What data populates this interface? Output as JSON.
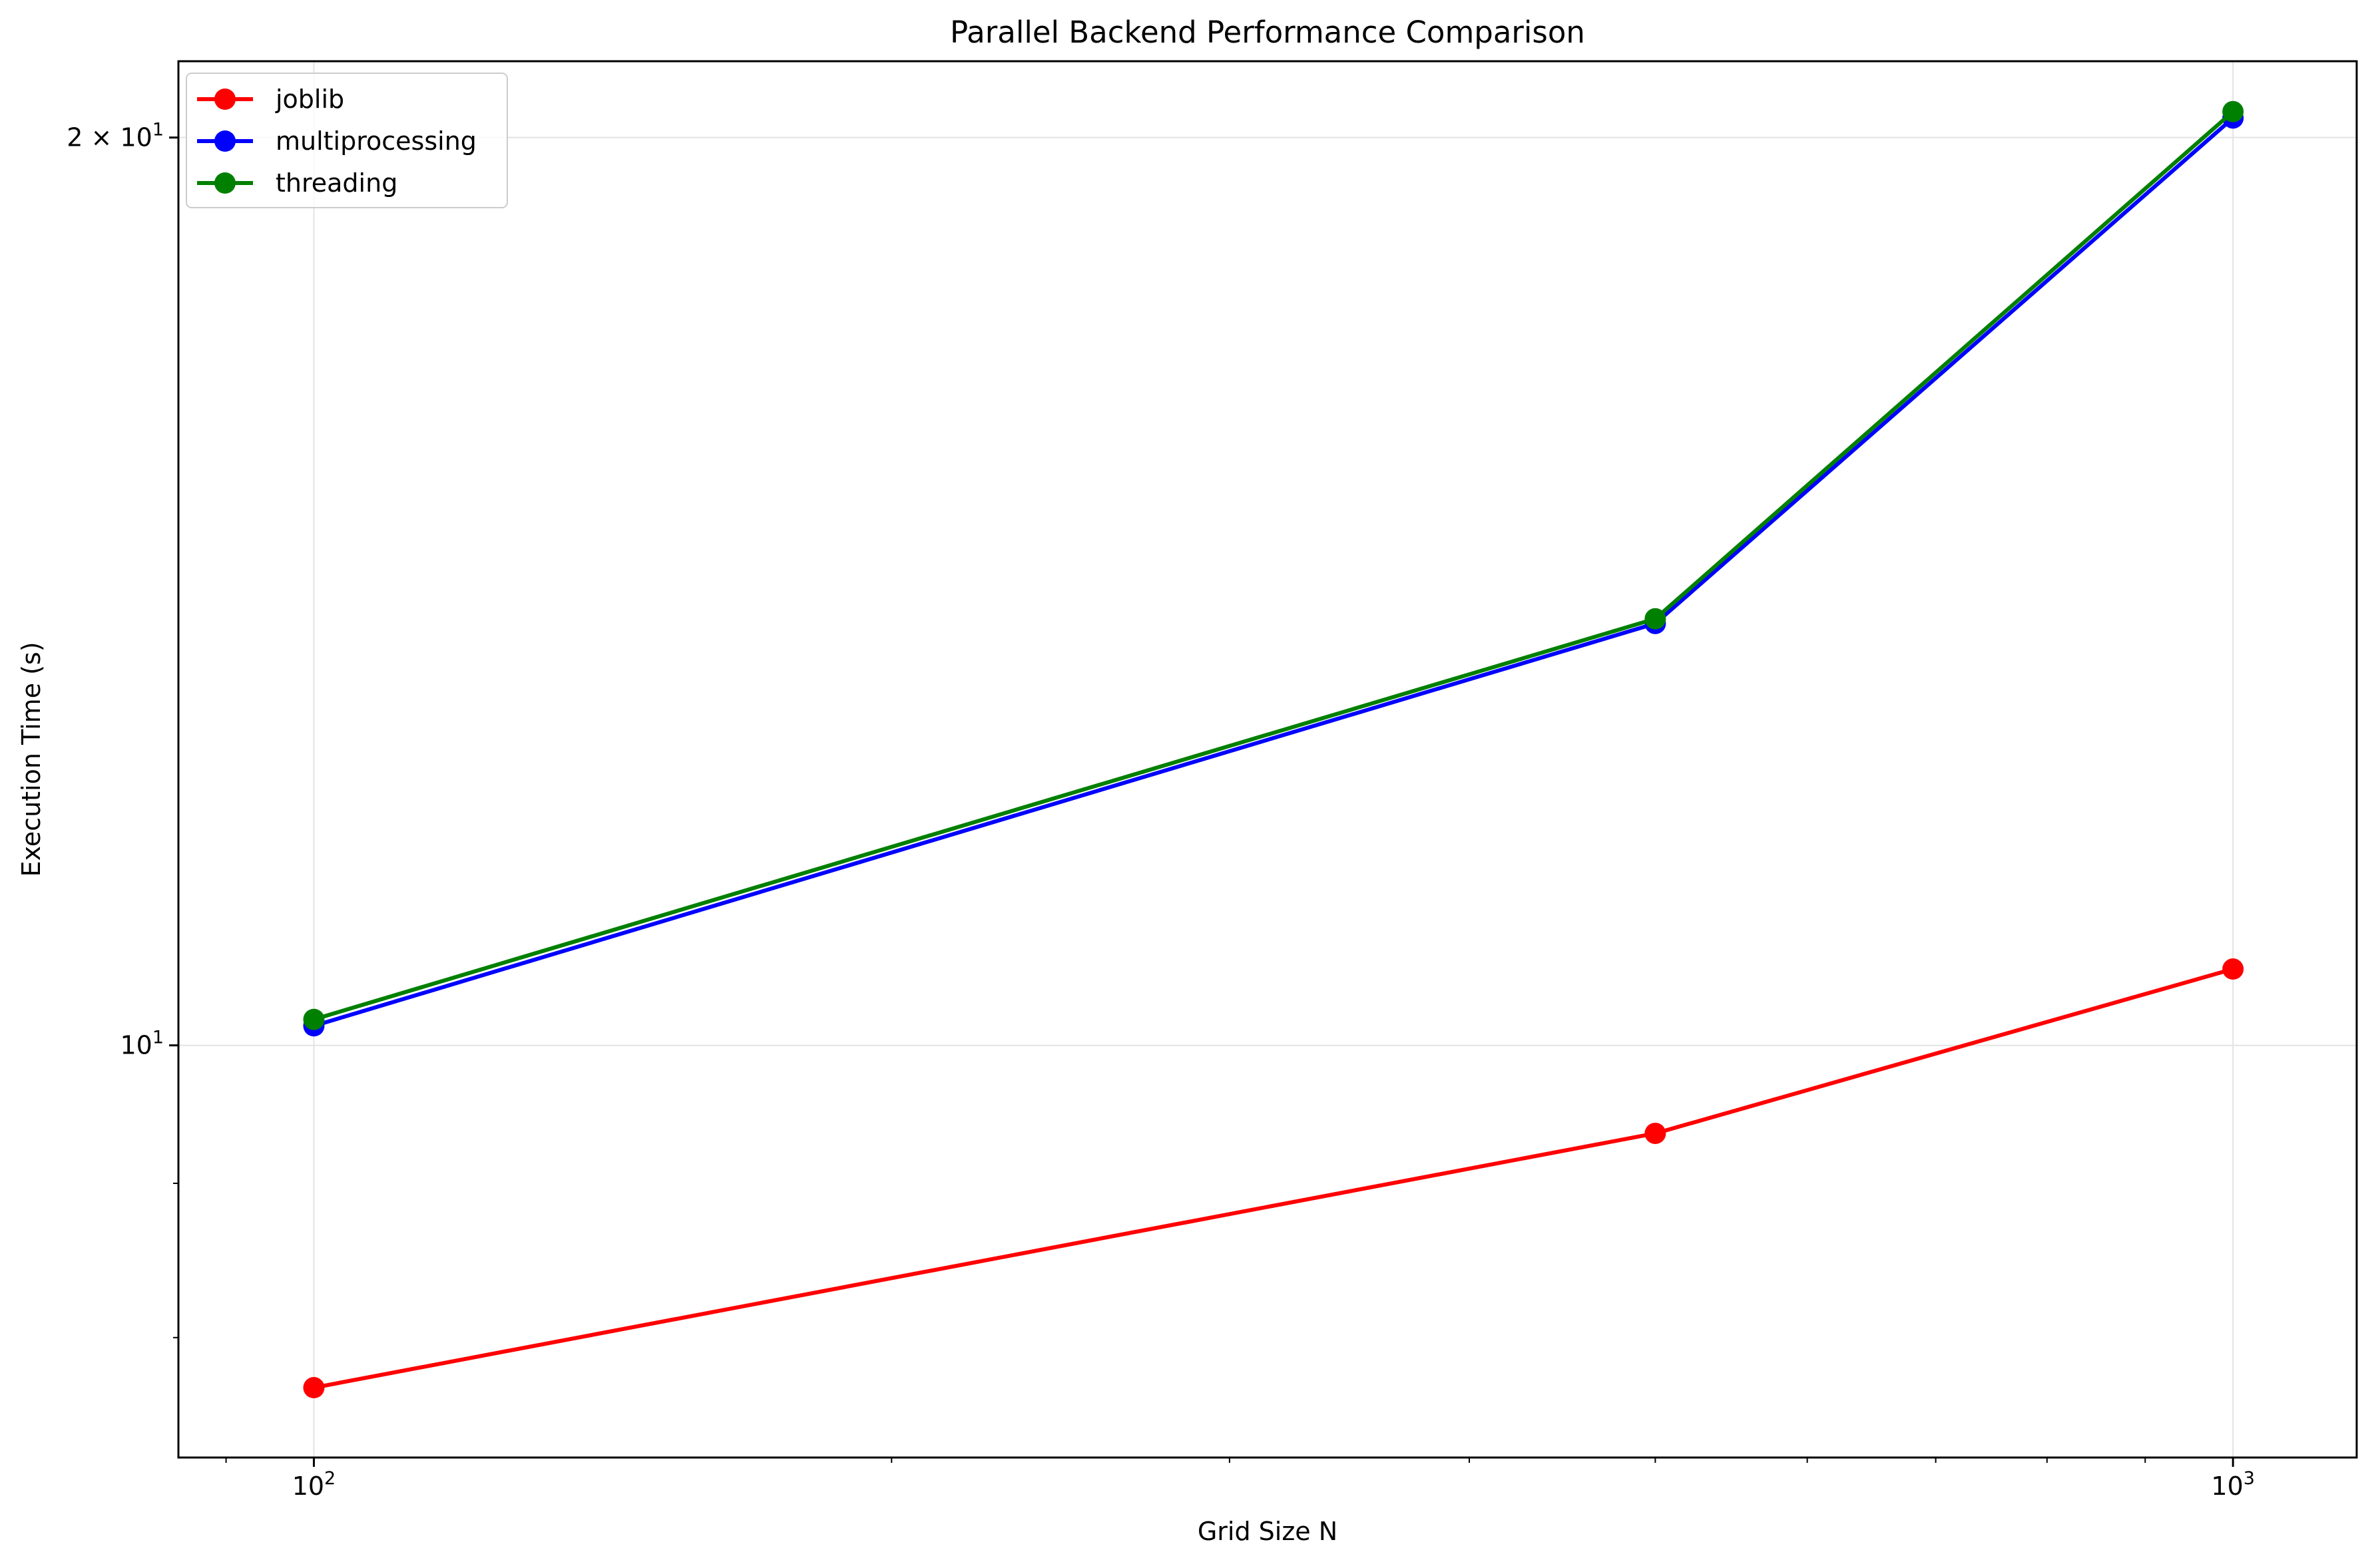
{
  "chart_data": {
    "type": "line",
    "title": "Parallel Backend Performance Comparison",
    "xlabel": "Grid Size N",
    "ylabel": "Execution Time (s)",
    "xscale": "log",
    "yscale": "log",
    "xlim": [
      85,
      1160
    ],
    "ylim": [
      7.3,
      21.2
    ],
    "x": [
      100,
      500,
      1000
    ],
    "x_ticks": [
      {
        "value": 100,
        "base": "10",
        "exp": "2"
      },
      {
        "value": 1000,
        "base": "10",
        "exp": "3"
      }
    ],
    "y_ticks": [
      {
        "value": 10,
        "prefix": "",
        "base": "10",
        "exp": "1"
      },
      {
        "value": 20,
        "prefix": "2 × ",
        "base": "10",
        "exp": "1"
      }
    ],
    "grid": true,
    "legend": "top-left",
    "series": [
      {
        "name": "joblib",
        "color": "#ff0000",
        "values": [
          7.7,
          9.35,
          10.6
        ]
      },
      {
        "name": "multiprocessing",
        "color": "#0000ff",
        "values": [
          10.15,
          13.8,
          20.3
        ]
      },
      {
        "name": "threading",
        "color": "#008000",
        "values": [
          10.2,
          13.85,
          20.4
        ]
      }
    ]
  }
}
